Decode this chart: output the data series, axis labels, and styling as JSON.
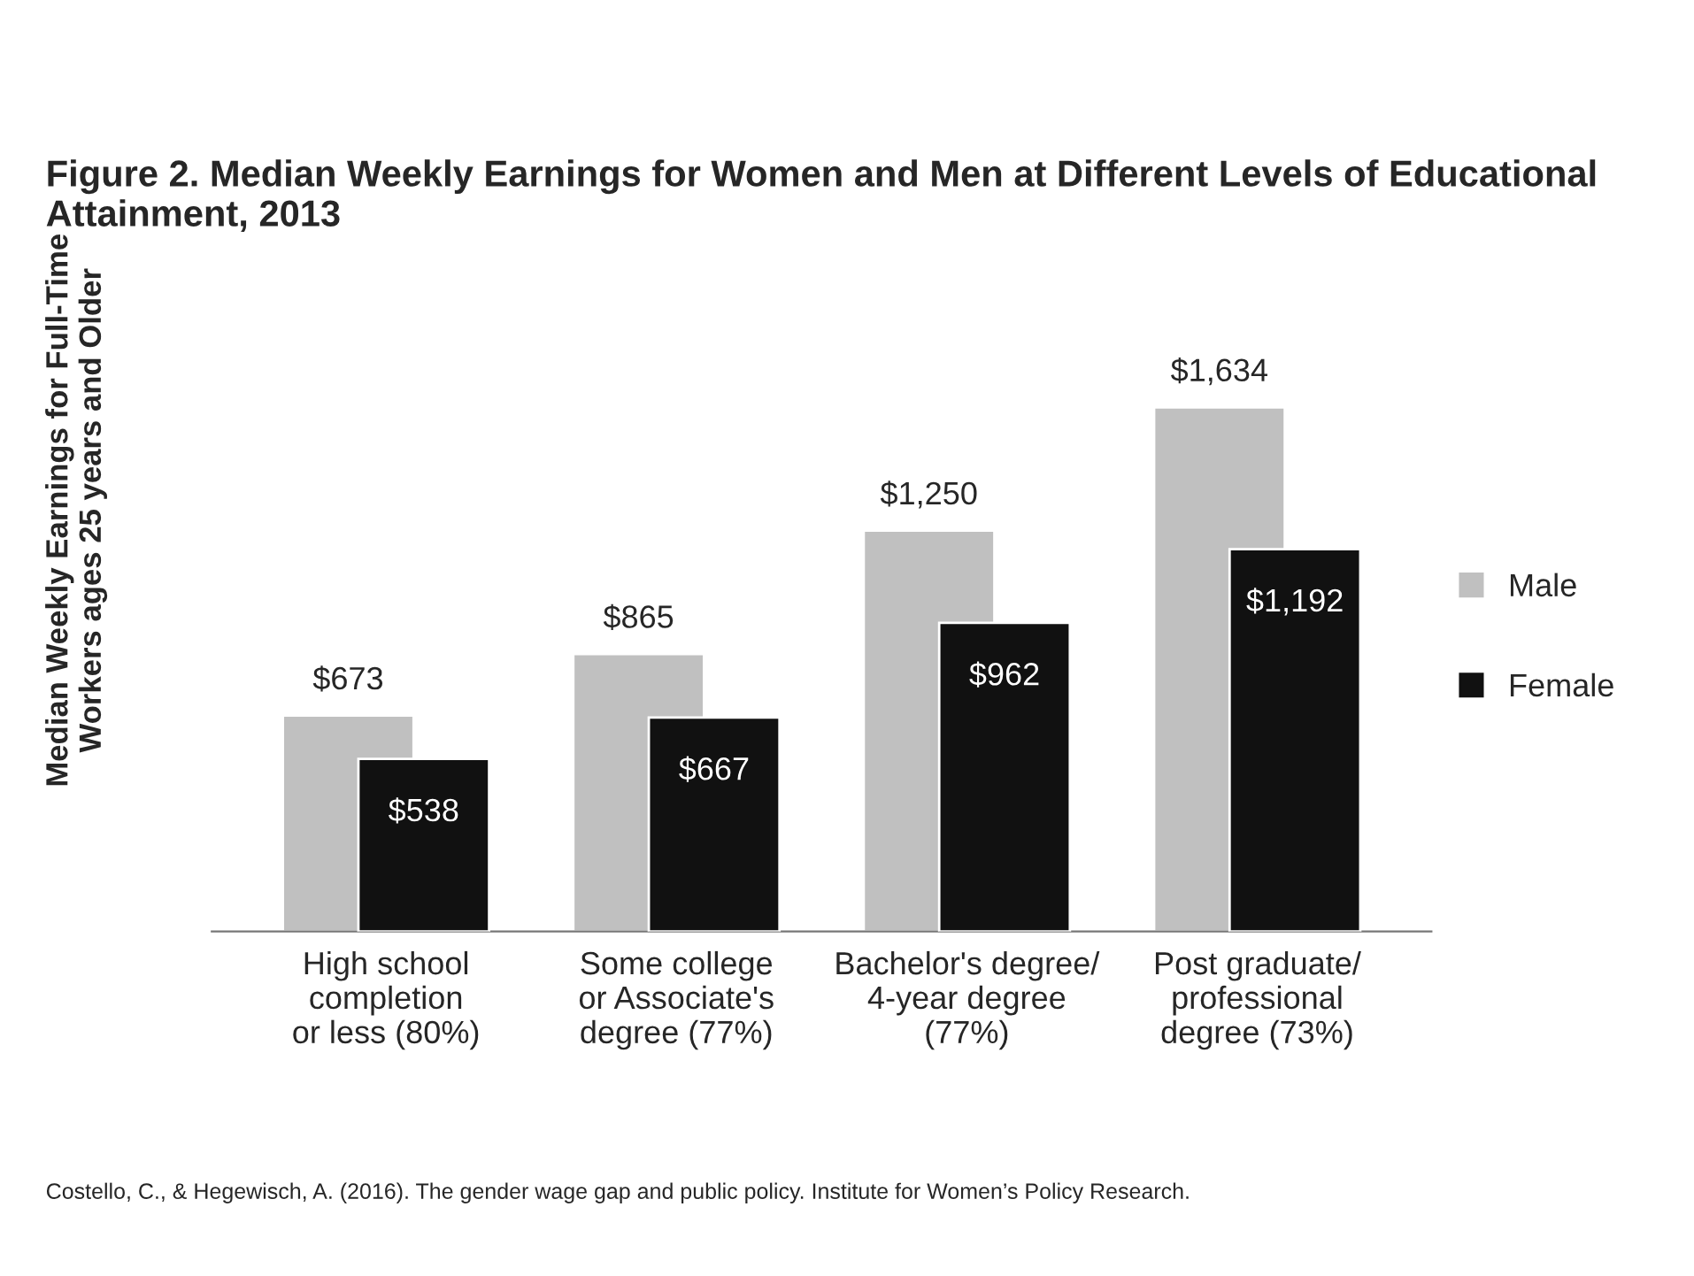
{
  "chart_data": {
    "type": "bar",
    "title": "Figure 2. Median Weekly Earnings for Women and Men at Different Levels of Educational Attainment, 2013",
    "ylabel": "Median Weekly Earnings for Full-Time\nWorkers ages 25 years and Older",
    "categories": [
      "High school\ncompletion\nor less (80%)",
      "Some college\nor Associate's\ndegree (77%)",
      "Bachelor's degree/\n4-year degree\n(77%)",
      "Post graduate/\nprofessional\ndegree (73%)"
    ],
    "series": [
      {
        "name": "Male",
        "color": "#c0c0c0",
        "values": [
          673,
          865,
          1250,
          1634
        ],
        "value_labels": [
          "$673",
          "$865",
          "$1,250",
          "$1,634"
        ]
      },
      {
        "name": "Female",
        "color": "#111111",
        "values": [
          538,
          667,
          962,
          1192
        ],
        "value_labels": [
          "$538",
          "$667",
          "$962",
          "$1,192"
        ]
      }
    ],
    "legend": "right",
    "grid": false,
    "tick_labels": "x",
    "annotations": [
      "Costello, C., & Hegewisch, A. (2016). The gender wage gap and public policy. Institute for Women’s Policy Research."
    ]
  }
}
